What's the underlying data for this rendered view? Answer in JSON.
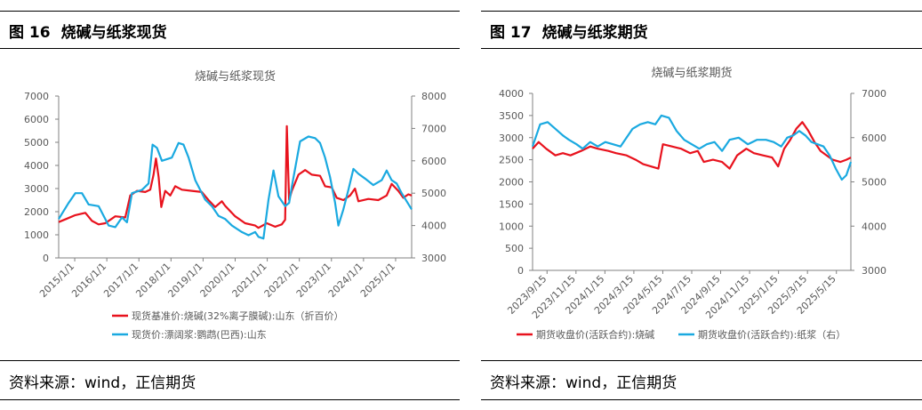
{
  "panels": [
    {
      "figure_label": "图 16",
      "figure_title": "烧碱与纸浆现货",
      "source": "资料来源：wind，正信期货"
    },
    {
      "figure_label": "图 17",
      "figure_title": "烧碱与纸浆期货",
      "source": "资料来源：wind，正信期货"
    }
  ],
  "colors": {
    "red": "#e8121d",
    "blue": "#1aa9e0",
    "axis": "#808080",
    "text": "#595959"
  },
  "chart_data": [
    {
      "type": "line",
      "title": "烧碱与纸浆现货",
      "x_ticks": [
        "2015/1/1",
        "2016/1/1",
        "2017/1/1",
        "2018/1/1",
        "2019/1/1",
        "2020/1/1",
        "2021/1/1",
        "2022/1/1",
        "2023/1/1",
        "2024/1/1",
        "2025/1/1"
      ],
      "y_left": {
        "min": 0,
        "max": 7000,
        "ticks": [
          "0",
          "1000",
          "2000",
          "3000",
          "4000",
          "5000",
          "6000",
          "7000"
        ]
      },
      "y_right": {
        "min": 3000,
        "max": 8000,
        "ticks": [
          "3000",
          "4000",
          "5000",
          "6000",
          "7000",
          "8000"
        ]
      },
      "x_range": [
        2015.0,
        2025.6
      ],
      "series": [
        {
          "name": "现货基准价:烧碱(32%离子膜碱):山东（折百价）",
          "axis": "left",
          "color": "#e8121d",
          "points": [
            [
              2015.0,
              1550
            ],
            [
              2015.25,
              1700
            ],
            [
              2015.5,
              1850
            ],
            [
              2015.8,
              1950
            ],
            [
              2016.0,
              1600
            ],
            [
              2016.2,
              1450
            ],
            [
              2016.4,
              1500
            ],
            [
              2016.7,
              1800
            ],
            [
              2017.0,
              1750
            ],
            [
              2017.15,
              2700
            ],
            [
              2017.35,
              2900
            ],
            [
              2017.6,
              2850
            ],
            [
              2017.75,
              2950
            ],
            [
              2017.85,
              3600
            ],
            [
              2017.92,
              4300
            ],
            [
              2018.0,
              3500
            ],
            [
              2018.08,
              2200
            ],
            [
              2018.2,
              2900
            ],
            [
              2018.35,
              2700
            ],
            [
              2018.5,
              3100
            ],
            [
              2018.7,
              2950
            ],
            [
              2019.0,
              2900
            ],
            [
              2019.3,
              2850
            ],
            [
              2019.5,
              2500
            ],
            [
              2019.7,
              2200
            ],
            [
              2019.9,
              2450
            ],
            [
              2020.0,
              2250
            ],
            [
              2020.3,
              1800
            ],
            [
              2020.6,
              1500
            ],
            [
              2020.9,
              1400
            ],
            [
              2021.0,
              1300
            ],
            [
              2021.25,
              1500
            ],
            [
              2021.5,
              1350
            ],
            [
              2021.7,
              1450
            ],
            [
              2021.8,
              1650
            ],
            [
              2021.85,
              5700
            ],
            [
              2021.92,
              2500
            ],
            [
              2022.0,
              2900
            ],
            [
              2022.2,
              3600
            ],
            [
              2022.4,
              3800
            ],
            [
              2022.6,
              3600
            ],
            [
              2022.85,
              3550
            ],
            [
              2023.0,
              3100
            ],
            [
              2023.2,
              3050
            ],
            [
              2023.35,
              2600
            ],
            [
              2023.55,
              2500
            ],
            [
              2023.75,
              2700
            ],
            [
              2023.9,
              3000
            ],
            [
              2024.0,
              2450
            ],
            [
              2024.3,
              2550
            ],
            [
              2024.6,
              2500
            ],
            [
              2024.85,
              2700
            ],
            [
              2025.0,
              3200
            ],
            [
              2025.2,
              2900
            ],
            [
              2025.35,
              2600
            ],
            [
              2025.5,
              2750
            ],
            [
              2025.6,
              2700
            ]
          ]
        },
        {
          "name": "现货价:漂阔浆:鹦鹉(巴西):山东",
          "axis": "right",
          "color": "#1aa9e0",
          "points": [
            [
              2015.0,
              4200
            ],
            [
              2015.15,
              4450
            ],
            [
              2015.3,
              4700
            ],
            [
              2015.5,
              5000
            ],
            [
              2015.7,
              5000
            ],
            [
              2015.9,
              4650
            ],
            [
              2016.2,
              4600
            ],
            [
              2016.5,
              4000
            ],
            [
              2016.7,
              3950
            ],
            [
              2016.9,
              4250
            ],
            [
              2017.05,
              4100
            ],
            [
              2017.2,
              5000
            ],
            [
              2017.5,
              5100
            ],
            [
              2017.7,
              5300
            ],
            [
              2017.82,
              6500
            ],
            [
              2017.95,
              6400
            ],
            [
              2018.1,
              6000
            ],
            [
              2018.4,
              6100
            ],
            [
              2018.6,
              6550
            ],
            [
              2018.75,
              6500
            ],
            [
              2018.9,
              6100
            ],
            [
              2019.1,
              5400
            ],
            [
              2019.4,
              4800
            ],
            [
              2019.6,
              4600
            ],
            [
              2019.8,
              4300
            ],
            [
              2020.0,
              4200
            ],
            [
              2020.2,
              4000
            ],
            [
              2020.5,
              3800
            ],
            [
              2020.7,
              3700
            ],
            [
              2020.9,
              3800
            ],
            [
              2021.0,
              3650
            ],
            [
              2021.15,
              3600
            ],
            [
              2021.3,
              4800
            ],
            [
              2021.45,
              5700
            ],
            [
              2021.6,
              4900
            ],
            [
              2021.8,
              4600
            ],
            [
              2021.92,
              4700
            ],
            [
              2022.0,
              5200
            ],
            [
              2022.25,
              6600
            ],
            [
              2022.5,
              6750
            ],
            [
              2022.7,
              6700
            ],
            [
              2022.85,
              6550
            ],
            [
              2023.0,
              6100
            ],
            [
              2023.15,
              5500
            ],
            [
              2023.3,
              4700
            ],
            [
              2023.4,
              4000
            ],
            [
              2023.55,
              4500
            ],
            [
              2023.7,
              5100
            ],
            [
              2023.85,
              5750
            ],
            [
              2024.0,
              5600
            ],
            [
              2024.2,
              5450
            ],
            [
              2024.45,
              5250
            ],
            [
              2024.7,
              5400
            ],
            [
              2024.85,
              5700
            ],
            [
              2025.0,
              5400
            ],
            [
              2025.15,
              5300
            ],
            [
              2025.3,
              5000
            ],
            [
              2025.45,
              4750
            ],
            [
              2025.6,
              4500
            ]
          ]
        }
      ]
    },
    {
      "type": "line",
      "title": "烧碱与纸浆期货",
      "x_ticks": [
        "2023/9/15",
        "2023/11/15",
        "2024/1/15",
        "2024/3/15",
        "2024/5/15",
        "2024/7/15",
        "2024/9/15",
        "2024/11/15",
        "2025/1/15",
        "2025/3/15",
        "2025/5/15"
      ],
      "y_left": {
        "min": 0,
        "max": 4000,
        "ticks": [
          "0",
          "500",
          "1000",
          "1500",
          "2000",
          "2500",
          "3000",
          "3500",
          "4000"
        ]
      },
      "y_right": {
        "min": 3000,
        "max": 7000,
        "ticks": [
          "3000",
          "4000",
          "5000",
          "6000",
          "7000"
        ]
      },
      "x_range": [
        0,
        21
      ],
      "series": [
        {
          "name": "期货收盘价(活跃合约):烧碱",
          "axis": "left",
          "color": "#e8121d",
          "points": [
            [
              0,
              2750
            ],
            [
              0.4,
              2900
            ],
            [
              0.9,
              2750
            ],
            [
              1.5,
              2600
            ],
            [
              2.0,
              2650
            ],
            [
              2.5,
              2600
            ],
            [
              3.2,
              2700
            ],
            [
              3.8,
              2800
            ],
            [
              4.3,
              2750
            ],
            [
              5.0,
              2700
            ],
            [
              5.5,
              2650
            ],
            [
              6.2,
              2600
            ],
            [
              6.8,
              2500
            ],
            [
              7.3,
              2400
            ],
            [
              7.8,
              2350
            ],
            [
              8.3,
              2300
            ],
            [
              8.6,
              2850
            ],
            [
              9.2,
              2800
            ],
            [
              9.8,
              2750
            ],
            [
              10.4,
              2650
            ],
            [
              10.9,
              2700
            ],
            [
              11.3,
              2450
            ],
            [
              11.9,
              2500
            ],
            [
              12.5,
              2450
            ],
            [
              13.0,
              2300
            ],
            [
              13.5,
              2600
            ],
            [
              14.1,
              2750
            ],
            [
              14.6,
              2650
            ],
            [
              15.2,
              2600
            ],
            [
              15.8,
              2550
            ],
            [
              16.2,
              2350
            ],
            [
              16.6,
              2750
            ],
            [
              17.0,
              2950
            ],
            [
              17.4,
              3200
            ],
            [
              17.8,
              3350
            ],
            [
              18.2,
              3150
            ],
            [
              18.6,
              2900
            ],
            [
              19.0,
              2700
            ],
            [
              19.4,
              2600
            ],
            [
              19.8,
              2500
            ],
            [
              20.3,
              2450
            ],
            [
              20.7,
              2500
            ],
            [
              21.0,
              2550
            ]
          ]
        },
        {
          "name": "期货收盘价(活跃合约):纸浆（右）",
          "axis": "right",
          "color": "#1aa9e0",
          "points": [
            [
              0,
              5800
            ],
            [
              0.5,
              6300
            ],
            [
              1.0,
              6350
            ],
            [
              1.5,
              6200
            ],
            [
              2.0,
              6050
            ],
            [
              2.4,
              5950
            ],
            [
              2.9,
              5850
            ],
            [
              3.3,
              5750
            ],
            [
              3.8,
              5900
            ],
            [
              4.3,
              5800
            ],
            [
              4.8,
              5900
            ],
            [
              5.3,
              5850
            ],
            [
              5.8,
              5800
            ],
            [
              6.2,
              6000
            ],
            [
              6.6,
              6200
            ],
            [
              7.1,
              6300
            ],
            [
              7.6,
              6350
            ],
            [
              8.1,
              6300
            ],
            [
              8.5,
              6500
            ],
            [
              9.0,
              6450
            ],
            [
              9.5,
              6150
            ],
            [
              10.0,
              5950
            ],
            [
              10.5,
              5850
            ],
            [
              11.0,
              5750
            ],
            [
              11.5,
              5850
            ],
            [
              12.0,
              5900
            ],
            [
              12.5,
              5700
            ],
            [
              13.0,
              5950
            ],
            [
              13.6,
              6000
            ],
            [
              14.2,
              5850
            ],
            [
              14.8,
              5950
            ],
            [
              15.4,
              5950
            ],
            [
              15.9,
              5900
            ],
            [
              16.4,
              5800
            ],
            [
              16.8,
              6000
            ],
            [
              17.2,
              6050
            ],
            [
              17.6,
              6150
            ],
            [
              18.0,
              6050
            ],
            [
              18.4,
              5900
            ],
            [
              18.8,
              5850
            ],
            [
              19.2,
              5800
            ],
            [
              19.6,
              5600
            ],
            [
              20.0,
              5300
            ],
            [
              20.4,
              5050
            ],
            [
              20.7,
              5150
            ],
            [
              21.0,
              5450
            ]
          ]
        }
      ]
    }
  ]
}
